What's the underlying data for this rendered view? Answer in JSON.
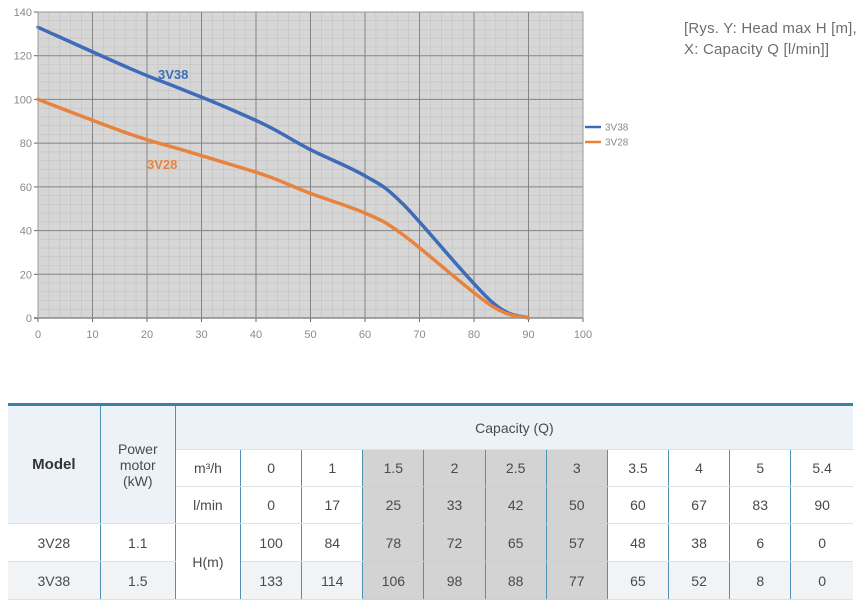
{
  "chart_data": {
    "type": "line",
    "title": "",
    "xlabel": "Capacity Q [l/min]",
    "ylabel": "Head max H [m]",
    "xlim": [
      0,
      100
    ],
    "ylim": [
      0,
      140
    ],
    "x_ticks": [
      0,
      10,
      20,
      30,
      40,
      50,
      60,
      70,
      80,
      90,
      100
    ],
    "y_ticks": [
      0,
      20,
      40,
      60,
      80,
      100,
      120,
      140
    ],
    "grid": true,
    "legend_position": "right",
    "x": [
      0,
      17,
      25,
      33,
      42,
      50,
      60,
      67,
      83,
      90
    ],
    "series": [
      {
        "name": "3V38",
        "color": "#3e6cb8",
        "values": [
          133,
          114,
          106,
          98,
          88,
          77,
          65,
          52,
          8,
          0
        ]
      },
      {
        "name": "3V28",
        "color": "#e8833d",
        "values": [
          100,
          84,
          78,
          72,
          65,
          57,
          48,
          38,
          6,
          0
        ]
      }
    ]
  },
  "chart": {
    "annotation": {
      "line1": "[Rys. Y: Head max H [m],",
      "line2": "X: Capacity Q [l/min]]"
    }
  },
  "colors": {
    "plot_bg": "#d6d6d6",
    "grid_minor": "#c2c2c2",
    "grid_major": "#848484",
    "axis": "#666666",
    "tick_label": "#8a8a8a",
    "legend_text": "#8a8a8a",
    "table_border_blue": "#4e91b5",
    "table_top_border": "#3a81a8",
    "header_bg": "#edf2f8",
    "highlight_gray": "#d3d3d3",
    "alt_row_bg": "#f1f3f4"
  },
  "table": {
    "model_header": "Model",
    "power_header": "Power motor (kW)",
    "capacity_header": "Capacity (Q)",
    "unit_m3h": "m³/h",
    "unit_lmin": "l/min",
    "unit_h": "H(m)",
    "capacity_m3h": [
      "0",
      "1",
      "1.5",
      "2",
      "2.5",
      "3",
      "3.5",
      "4",
      "5",
      "5.4"
    ],
    "capacity_lmin": [
      "0",
      "17",
      "25",
      "33",
      "42",
      "50",
      "60",
      "67",
      "83",
      "90"
    ],
    "rows": [
      {
        "model": "3V28",
        "power": "1.1",
        "h": [
          "100",
          "84",
          "78",
          "72",
          "65",
          "57",
          "48",
          "38",
          "6",
          "0"
        ]
      },
      {
        "model": "3V38",
        "power": "1.5",
        "h": [
          "133",
          "114",
          "106",
          "98",
          "88",
          "77",
          "65",
          "52",
          "8",
          "0"
        ]
      }
    ],
    "highlighted_columns": [
      "1.5",
      "2",
      "2.5",
      "3"
    ]
  }
}
